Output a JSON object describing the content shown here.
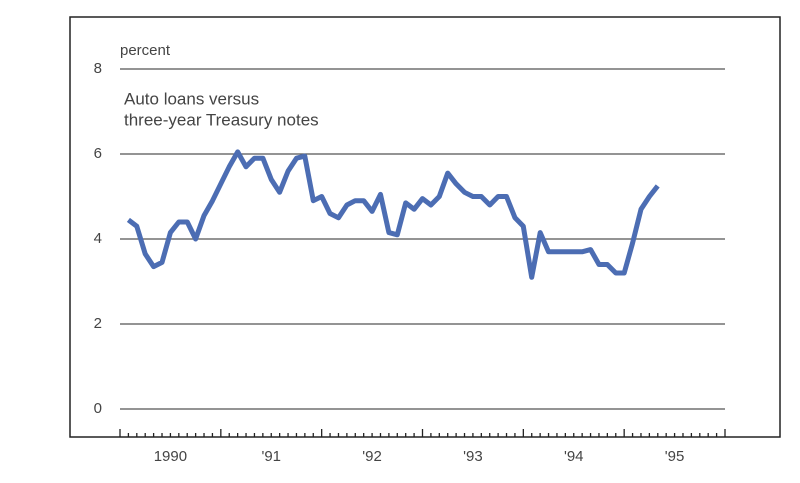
{
  "chart_data": {
    "type": "line",
    "title": [
      "Auto loans versus",
      "three-year Treasury notes"
    ],
    "ylabel": "percent",
    "x": [
      1990.083,
      1990.167,
      1990.25,
      1990.333,
      1990.417,
      1990.5,
      1990.583,
      1990.667,
      1990.75,
      1990.833,
      1990.917,
      1991,
      1991.083,
      1991.167,
      1991.25,
      1991.333,
      1991.417,
      1991.5,
      1991.583,
      1991.667,
      1991.75,
      1991.833,
      1991.917,
      1992,
      1992.083,
      1992.167,
      1992.25,
      1992.333,
      1992.417,
      1992.5,
      1992.583,
      1992.667,
      1992.75,
      1992.833,
      1992.917,
      1993,
      1993.083,
      1993.167,
      1993.25,
      1993.333,
      1993.417,
      1993.5,
      1993.583,
      1993.667,
      1993.75,
      1993.833,
      1993.917,
      1994,
      1994.083,
      1994.167,
      1994.25,
      1994.333,
      1994.417,
      1994.5,
      1994.583,
      1994.667,
      1994.75,
      1994.833,
      1994.917,
      1995,
      1995.083,
      1995.167,
      1995.25,
      1995.333
    ],
    "series": [
      {
        "color": "#4c6db3",
        "values": [
          4.45,
          4.3,
          3.65,
          3.35,
          3.45,
          4.15,
          4.4,
          4.4,
          4.0,
          4.55,
          4.9,
          5.3,
          5.7,
          6.05,
          5.7,
          5.9,
          5.9,
          5.4,
          5.1,
          5.6,
          5.9,
          5.95,
          4.9,
          5.0,
          4.6,
          4.5,
          4.8,
          4.9,
          4.9,
          4.65,
          5.05,
          4.15,
          4.1,
          4.85,
          4.7,
          4.95,
          4.8,
          5.0,
          5.55,
          5.3,
          5.1,
          5.0,
          5.0,
          4.8,
          5.0,
          5.0,
          4.5,
          4.3,
          3.1,
          4.15,
          3.7,
          3.7,
          3.7,
          3.7,
          3.7,
          3.75,
          3.4,
          3.4,
          3.2,
          3.2,
          3.9,
          4.7,
          5.0,
          5.25
        ]
      }
    ],
    "xlim": [
      1990,
      1996
    ],
    "xticks": [
      {
        "value": 1990.5,
        "label": "1990"
      },
      {
        "value": 1991.5,
        "label": "'91"
      },
      {
        "value": 1992.5,
        "label": "'92"
      },
      {
        "value": 1993.5,
        "label": "'93"
      },
      {
        "value": 1994.5,
        "label": "'94"
      },
      {
        "value": 1995.5,
        "label": "'95"
      }
    ],
    "ylim": [
      0,
      8
    ],
    "yticks": [
      0,
      2,
      4,
      6,
      8
    ],
    "grid": true
  }
}
